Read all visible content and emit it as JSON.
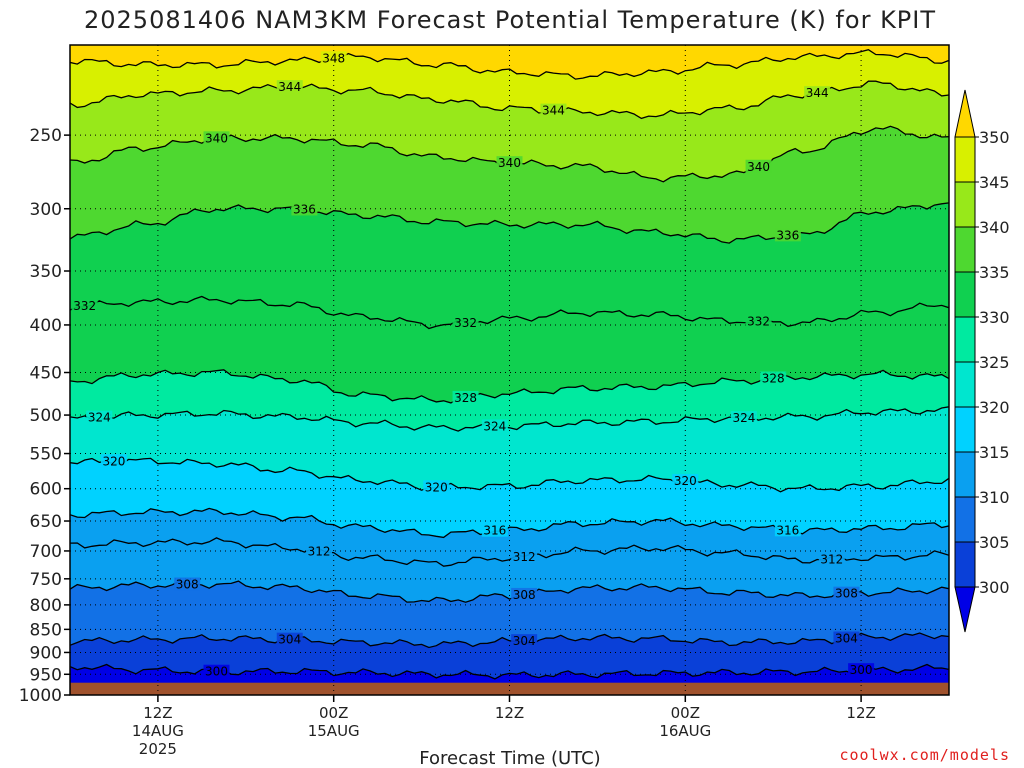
{
  "chart_data": {
    "type": "heatmap",
    "title": "2025081406 NAM3KM Forecast Potential Temperature (K) for KPIT",
    "xlabel": "Forecast Time (UTC)",
    "ylabel": "",
    "y_scale": "log",
    "y_inverted": true,
    "ylim": [
      1000,
      200
    ],
    "yticks": [
      250,
      300,
      350,
      400,
      450,
      500,
      550,
      600,
      650,
      700,
      750,
      800,
      850,
      900,
      950,
      1000
    ],
    "x_ticks": [
      {
        "x": "2025-08-14 12:00",
        "label": "12Z",
        "sub1": "14AUG",
        "sub2": "2025"
      },
      {
        "x": "2025-08-15 00:00",
        "label": "00Z",
        "sub1": "15AUG",
        "sub2": ""
      },
      {
        "x": "2025-08-15 12:00",
        "label": "12Z",
        "sub1": "",
        "sub2": ""
      },
      {
        "x": "2025-08-16 00:00",
        "label": "00Z",
        "sub1": "16AUG",
        "sub2": ""
      },
      {
        "x": "2025-08-16 12:00",
        "label": "12Z",
        "sub1": "",
        "sub2": ""
      }
    ],
    "xlim": [
      "2025-08-14 06:00",
      "2025-08-16 18:00"
    ],
    "grid": true,
    "surface_pressure_hPa": 970,
    "colorbar": {
      "levels": [
        300,
        305,
        310,
        315,
        320,
        325,
        330,
        335,
        340,
        345,
        350
      ],
      "colors": [
        "#0000e6",
        "#0a40d8",
        "#1271e6",
        "#0aa0f0",
        "#00d2ff",
        "#00e6cf",
        "#00eaa0",
        "#10d050",
        "#4ed830",
        "#98e81a",
        "#d8f000",
        "#ffff00",
        "#ffd800"
      ],
      "extend": "both"
    },
    "series": [
      {
        "name": "300",
        "level": 300,
        "y_profile": [
          932,
          940,
          944,
          943,
          946,
          950,
          952,
          950,
          948,
          946,
          944,
          940,
          935
        ]
      },
      {
        "name": "304",
        "level": 304,
        "y_profile": [
          876,
          872,
          869,
          872,
          878,
          882,
          876,
          868,
          870,
          878,
          876,
          866,
          862
        ]
      },
      {
        "name": "308",
        "level": 308,
        "y_profile": [
          768,
          762,
          760,
          766,
          782,
          792,
          782,
          768,
          766,
          776,
          782,
          776,
          770
        ]
      },
      {
        "name": "312",
        "level": 312,
        "y_profile": [
          690,
          686,
          684,
          695,
          712,
          722,
          712,
          700,
          695,
          704,
          716,
          712,
          706
        ]
      },
      {
        "name": "316",
        "level": 316,
        "y_profile": [
          640,
          636,
          635,
          644,
          660,
          672,
          665,
          654,
          650,
          658,
          666,
          662,
          655
        ]
      },
      {
        "name": "320",
        "level": 320,
        "y_profile": [
          562,
          560,
          564,
          574,
          588,
          598,
          596,
          588,
          586,
          594,
          600,
          596,
          588
        ]
      },
      {
        "name": "324",
        "level": 324,
        "y_profile": [
          505,
          500,
          498,
          502,
          510,
          516,
          514,
          510,
          508,
          504,
          502,
          496,
          494
        ]
      },
      {
        "name": "328",
        "level": 328,
        "y_profile": [
          460,
          452,
          450,
          458,
          476,
          482,
          474,
          468,
          466,
          460,
          455,
          452,
          455
        ]
      },
      {
        "name": "332",
        "level": 332,
        "y_profile": [
          382,
          378,
          376,
          380,
          392,
          400,
          394,
          388,
          390,
          396,
          398,
          388,
          380
        ]
      },
      {
        "name": "336",
        "level": 336,
        "y_profile": [
          322,
          312,
          300,
          300,
          305,
          310,
          312,
          312,
          318,
          324,
          320,
          302,
          296
        ]
      },
      {
        "name": "340",
        "level": 340,
        "y_profile": [
          268,
          258,
          252,
          252,
          256,
          264,
          268,
          270,
          278,
          276,
          260,
          246,
          252
        ]
      },
      {
        "name": "344",
        "level": 344,
        "y_profile": [
          232,
          226,
          224,
          222,
          224,
          229,
          234,
          236,
          238,
          234,
          226,
          220,
          226
        ]
      },
      {
        "name": "348",
        "level": 348,
        "y_profile": [
          208,
          210,
          210,
          208,
          206,
          210,
          214,
          216,
          214,
          210,
          206,
          204,
          208
        ]
      }
    ],
    "profile_x": [
      "2025-08-14 06:00",
      "2025-08-14 11:00",
      "2025-08-14 16:00",
      "2025-08-14 21:00",
      "2025-08-15 02:00",
      "2025-08-15 07:00",
      "2025-08-15 12:00",
      "2025-08-15 17:00",
      "2025-08-15 22:00",
      "2025-08-16 03:00",
      "2025-08-16 08:00",
      "2025-08-16 13:00",
      "2025-08-16 18:00"
    ],
    "labels": [
      {
        "level": 348,
        "x": "2025-08-15 00:00"
      },
      {
        "level": 344,
        "x": "2025-08-14 21:00"
      },
      {
        "level": 344,
        "x": "2025-08-15 15:00"
      },
      {
        "level": 344,
        "x": "2025-08-16 09:00"
      },
      {
        "level": 340,
        "x": "2025-08-14 16:00"
      },
      {
        "level": 340,
        "x": "2025-08-15 12:00"
      },
      {
        "level": 340,
        "x": "2025-08-16 05:00"
      },
      {
        "level": 336,
        "x": "2025-08-14 22:00"
      },
      {
        "level": 336,
        "x": "2025-08-16 07:00"
      },
      {
        "level": 332,
        "x": "2025-08-14 07:00"
      },
      {
        "level": 332,
        "x": "2025-08-15 09:00"
      },
      {
        "level": 332,
        "x": "2025-08-16 05:00"
      },
      {
        "level": 328,
        "x": "2025-08-15 09:00"
      },
      {
        "level": 328,
        "x": "2025-08-16 06:00"
      },
      {
        "level": 324,
        "x": "2025-08-14 08:00"
      },
      {
        "level": 324,
        "x": "2025-08-15 11:00"
      },
      {
        "level": 324,
        "x": "2025-08-16 04:00"
      },
      {
        "level": 320,
        "x": "2025-08-14 09:00"
      },
      {
        "level": 320,
        "x": "2025-08-15 07:00"
      },
      {
        "level": 320,
        "x": "2025-08-16 00:00"
      },
      {
        "level": 316,
        "x": "2025-08-15 11:00"
      },
      {
        "level": 316,
        "x": "2025-08-16 07:00"
      },
      {
        "level": 312,
        "x": "2025-08-14 23:00"
      },
      {
        "level": 312,
        "x": "2025-08-15 13:00"
      },
      {
        "level": 312,
        "x": "2025-08-16 10:00"
      },
      {
        "level": 308,
        "x": "2025-08-14 14:00"
      },
      {
        "level": 308,
        "x": "2025-08-15 13:00"
      },
      {
        "level": 308,
        "x": "2025-08-16 11:00"
      },
      {
        "level": 304,
        "x": "2025-08-14 21:00"
      },
      {
        "level": 304,
        "x": "2025-08-15 13:00"
      },
      {
        "level": 304,
        "x": "2025-08-16 11:00"
      },
      {
        "level": 300,
        "x": "2025-08-14 16:00"
      },
      {
        "level": 300,
        "x": "2025-08-16 12:00"
      }
    ],
    "credit": "coolwx.com/models"
  }
}
